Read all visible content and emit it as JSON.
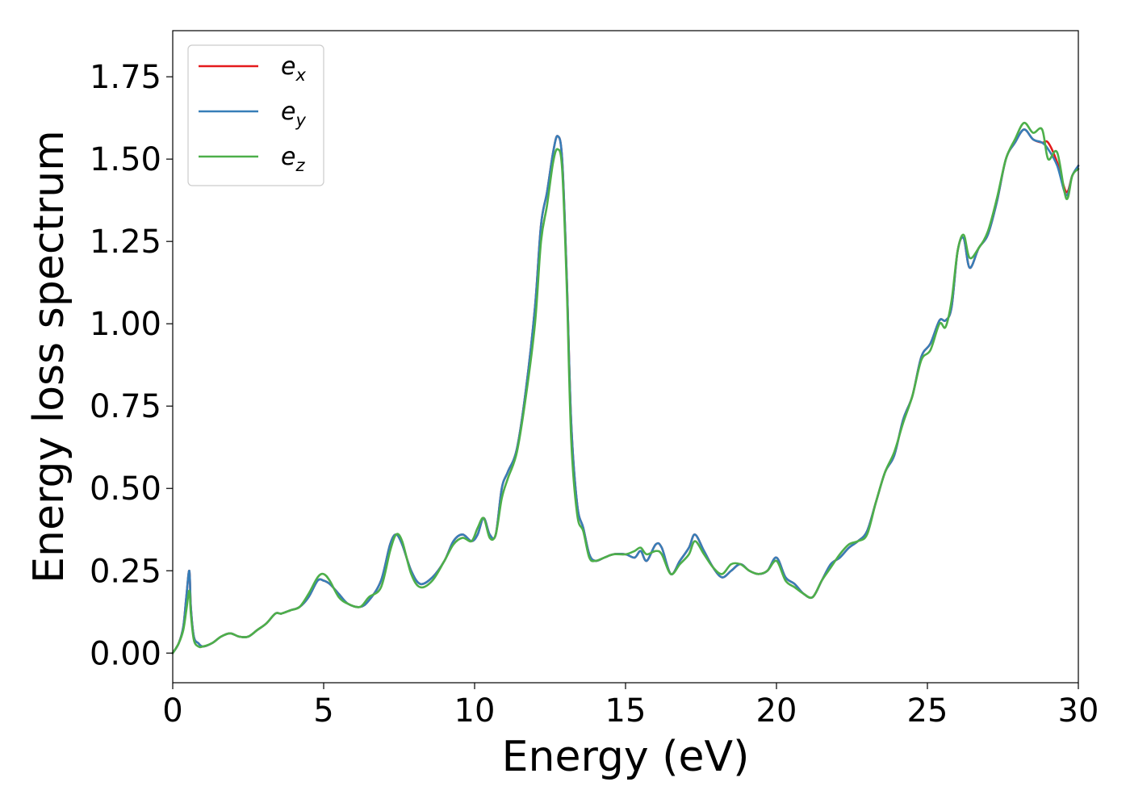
{
  "chart_data": {
    "type": "line",
    "xlabel": "Energy (eV)",
    "ylabel": "Energy loss spectrum",
    "xlim": [
      0,
      30
    ],
    "ylim": [
      -0.09,
      1.89
    ],
    "xticks": [
      0,
      5,
      10,
      15,
      20,
      25,
      30
    ],
    "xtick_labels": [
      "0",
      "5",
      "10",
      "15",
      "20",
      "25",
      "30"
    ],
    "yticks": [
      0,
      0.25,
      0.5,
      0.75,
      1.0,
      1.25,
      1.5,
      1.75
    ],
    "ytick_labels": [
      "0.00",
      "0.25",
      "0.50",
      "0.75",
      "1.00",
      "1.25",
      "1.50",
      "1.75"
    ],
    "grid": false,
    "legend_position": "top-left",
    "series": [
      {
        "name": "e_x",
        "name_base": "e",
        "name_sub": "x",
        "color": "#e41a1c",
        "x": [
          0.0,
          0.2,
          0.35,
          0.45,
          0.55,
          0.6,
          0.7,
          0.85,
          1.0,
          1.3,
          1.6,
          1.9,
          2.2,
          2.5,
          2.8,
          3.1,
          3.4,
          3.6,
          3.9,
          4.2,
          4.5,
          4.8,
          5.0,
          5.2,
          5.5,
          5.8,
          6.2,
          6.5,
          6.9,
          7.2,
          7.4,
          7.6,
          7.9,
          8.2,
          8.6,
          9.0,
          9.3,
          9.6,
          9.9,
          10.1,
          10.3,
          10.5,
          10.7,
          10.9,
          11.1,
          11.4,
          11.7,
          12.0,
          12.2,
          12.4,
          12.6,
          12.75,
          12.9,
          13.05,
          13.2,
          13.4,
          13.6,
          13.8,
          14.0,
          14.3,
          14.6,
          15.0,
          15.3,
          15.5,
          15.7,
          16.0,
          16.2,
          16.5,
          16.8,
          17.1,
          17.3,
          17.6,
          17.9,
          18.2,
          18.5,
          18.8,
          19.1,
          19.4,
          19.7,
          20.0,
          20.3,
          20.6,
          20.9,
          21.2,
          21.5,
          21.8,
          22.1,
          22.4,
          22.7,
          23.0,
          23.3,
          23.6,
          23.9,
          24.2,
          24.5,
          24.8,
          25.1,
          25.4,
          25.6,
          25.8,
          26.0,
          26.2,
          26.4,
          26.7,
          27.0,
          27.3,
          27.6,
          27.9,
          28.2,
          28.5,
          28.8,
          29.0,
          29.3,
          29.6,
          29.8,
          30.0
        ],
        "values": [
          0.0,
          0.03,
          0.08,
          0.17,
          0.25,
          0.14,
          0.05,
          0.03,
          0.02,
          0.03,
          0.05,
          0.06,
          0.05,
          0.05,
          0.07,
          0.09,
          0.12,
          0.12,
          0.13,
          0.14,
          0.17,
          0.22,
          0.22,
          0.21,
          0.18,
          0.15,
          0.14,
          0.16,
          0.22,
          0.33,
          0.36,
          0.33,
          0.25,
          0.21,
          0.23,
          0.28,
          0.34,
          0.36,
          0.34,
          0.36,
          0.41,
          0.36,
          0.36,
          0.5,
          0.55,
          0.62,
          0.8,
          1.05,
          1.3,
          1.4,
          1.52,
          1.57,
          1.5,
          1.15,
          0.7,
          0.45,
          0.38,
          0.3,
          0.28,
          0.29,
          0.3,
          0.3,
          0.29,
          0.31,
          0.28,
          0.33,
          0.32,
          0.24,
          0.28,
          0.32,
          0.36,
          0.31,
          0.26,
          0.23,
          0.25,
          0.27,
          0.25,
          0.24,
          0.25,
          0.29,
          0.23,
          0.21,
          0.18,
          0.17,
          0.22,
          0.27,
          0.29,
          0.32,
          0.34,
          0.37,
          0.46,
          0.55,
          0.6,
          0.71,
          0.78,
          0.9,
          0.94,
          1.01,
          1.01,
          1.05,
          1.22,
          1.26,
          1.17,
          1.23,
          1.27,
          1.37,
          1.5,
          1.55,
          1.59,
          1.56,
          1.55,
          1.55,
          1.49,
          1.4,
          1.45,
          1.48
        ]
      },
      {
        "name": "e_y",
        "name_base": "e",
        "name_sub": "y",
        "color": "#377eb8",
        "x": [
          0.0,
          0.2,
          0.35,
          0.45,
          0.55,
          0.6,
          0.7,
          0.85,
          1.0,
          1.3,
          1.6,
          1.9,
          2.2,
          2.5,
          2.8,
          3.1,
          3.4,
          3.6,
          3.9,
          4.2,
          4.5,
          4.8,
          5.0,
          5.2,
          5.5,
          5.8,
          6.2,
          6.5,
          6.9,
          7.2,
          7.4,
          7.6,
          7.9,
          8.2,
          8.6,
          9.0,
          9.3,
          9.6,
          9.9,
          10.1,
          10.3,
          10.5,
          10.7,
          10.9,
          11.1,
          11.4,
          11.7,
          12.0,
          12.2,
          12.4,
          12.6,
          12.75,
          12.9,
          13.05,
          13.2,
          13.4,
          13.6,
          13.8,
          14.0,
          14.3,
          14.6,
          15.0,
          15.3,
          15.5,
          15.7,
          16.0,
          16.2,
          16.5,
          16.8,
          17.1,
          17.3,
          17.6,
          17.9,
          18.2,
          18.5,
          18.8,
          19.1,
          19.4,
          19.7,
          20.0,
          20.3,
          20.6,
          20.9,
          21.2,
          21.5,
          21.8,
          22.1,
          22.4,
          22.7,
          23.0,
          23.3,
          23.6,
          23.9,
          24.2,
          24.5,
          24.8,
          25.1,
          25.4,
          25.6,
          25.8,
          26.0,
          26.2,
          26.4,
          26.7,
          27.0,
          27.3,
          27.6,
          27.9,
          28.2,
          28.5,
          28.8,
          29.0,
          29.3,
          29.6,
          29.8,
          30.0
        ],
        "values": [
          0.0,
          0.03,
          0.08,
          0.17,
          0.25,
          0.14,
          0.05,
          0.03,
          0.02,
          0.03,
          0.05,
          0.06,
          0.05,
          0.05,
          0.07,
          0.09,
          0.12,
          0.12,
          0.13,
          0.14,
          0.17,
          0.22,
          0.22,
          0.21,
          0.18,
          0.15,
          0.14,
          0.16,
          0.22,
          0.33,
          0.36,
          0.33,
          0.25,
          0.21,
          0.23,
          0.28,
          0.34,
          0.36,
          0.34,
          0.36,
          0.41,
          0.36,
          0.36,
          0.5,
          0.55,
          0.62,
          0.8,
          1.05,
          1.3,
          1.4,
          1.52,
          1.57,
          1.5,
          1.15,
          0.7,
          0.45,
          0.38,
          0.3,
          0.28,
          0.29,
          0.3,
          0.3,
          0.29,
          0.31,
          0.28,
          0.33,
          0.32,
          0.24,
          0.28,
          0.32,
          0.36,
          0.31,
          0.26,
          0.23,
          0.25,
          0.27,
          0.25,
          0.24,
          0.25,
          0.29,
          0.23,
          0.21,
          0.18,
          0.17,
          0.22,
          0.27,
          0.29,
          0.32,
          0.34,
          0.37,
          0.46,
          0.55,
          0.6,
          0.71,
          0.78,
          0.9,
          0.94,
          1.01,
          1.01,
          1.05,
          1.22,
          1.26,
          1.17,
          1.23,
          1.27,
          1.37,
          1.5,
          1.55,
          1.59,
          1.56,
          1.55,
          1.53,
          1.48,
          1.39,
          1.45,
          1.48
        ]
      },
      {
        "name": "e_z",
        "name_base": "e",
        "name_sub": "z",
        "color": "#4daf4a",
        "x": [
          0.0,
          0.2,
          0.35,
          0.45,
          0.55,
          0.6,
          0.7,
          0.85,
          1.0,
          1.3,
          1.6,
          1.9,
          2.2,
          2.5,
          2.8,
          3.1,
          3.4,
          3.6,
          3.9,
          4.2,
          4.5,
          4.8,
          5.0,
          5.2,
          5.5,
          5.8,
          6.2,
          6.5,
          6.9,
          7.2,
          7.4,
          7.6,
          7.9,
          8.2,
          8.6,
          9.0,
          9.3,
          9.6,
          9.9,
          10.1,
          10.3,
          10.5,
          10.7,
          10.9,
          11.1,
          11.4,
          11.7,
          12.0,
          12.2,
          12.4,
          12.6,
          12.75,
          12.9,
          13.05,
          13.2,
          13.4,
          13.6,
          13.8,
          14.0,
          14.3,
          14.6,
          15.0,
          15.3,
          15.5,
          15.7,
          16.0,
          16.2,
          16.5,
          16.8,
          17.1,
          17.3,
          17.6,
          17.9,
          18.2,
          18.5,
          18.8,
          19.1,
          19.4,
          19.7,
          20.0,
          20.3,
          20.6,
          20.9,
          21.2,
          21.5,
          21.8,
          22.1,
          22.4,
          22.7,
          23.0,
          23.3,
          23.6,
          23.9,
          24.2,
          24.5,
          24.8,
          25.1,
          25.4,
          25.6,
          25.8,
          26.0,
          26.2,
          26.4,
          26.7,
          27.0,
          27.3,
          27.6,
          27.9,
          28.2,
          28.5,
          28.8,
          29.0,
          29.3,
          29.6,
          29.8,
          30.0
        ],
        "values": [
          0.0,
          0.03,
          0.07,
          0.13,
          0.19,
          0.12,
          0.04,
          0.02,
          0.02,
          0.03,
          0.05,
          0.06,
          0.05,
          0.05,
          0.07,
          0.09,
          0.12,
          0.12,
          0.13,
          0.14,
          0.18,
          0.23,
          0.24,
          0.22,
          0.17,
          0.15,
          0.14,
          0.17,
          0.2,
          0.31,
          0.36,
          0.34,
          0.24,
          0.2,
          0.22,
          0.28,
          0.33,
          0.35,
          0.34,
          0.38,
          0.41,
          0.35,
          0.36,
          0.47,
          0.53,
          0.61,
          0.78,
          1.0,
          1.25,
          1.36,
          1.49,
          1.53,
          1.47,
          1.12,
          0.65,
          0.42,
          0.37,
          0.29,
          0.28,
          0.29,
          0.3,
          0.3,
          0.31,
          0.32,
          0.3,
          0.31,
          0.3,
          0.24,
          0.27,
          0.3,
          0.34,
          0.3,
          0.26,
          0.24,
          0.27,
          0.27,
          0.25,
          0.24,
          0.25,
          0.28,
          0.22,
          0.2,
          0.18,
          0.17,
          0.22,
          0.26,
          0.3,
          0.33,
          0.34,
          0.36,
          0.46,
          0.55,
          0.61,
          0.7,
          0.78,
          0.89,
          0.92,
          1.0,
          0.99,
          1.07,
          1.22,
          1.27,
          1.2,
          1.23,
          1.28,
          1.38,
          1.5,
          1.56,
          1.61,
          1.58,
          1.59,
          1.5,
          1.52,
          1.38,
          1.45,
          1.47
        ]
      }
    ]
  }
}
